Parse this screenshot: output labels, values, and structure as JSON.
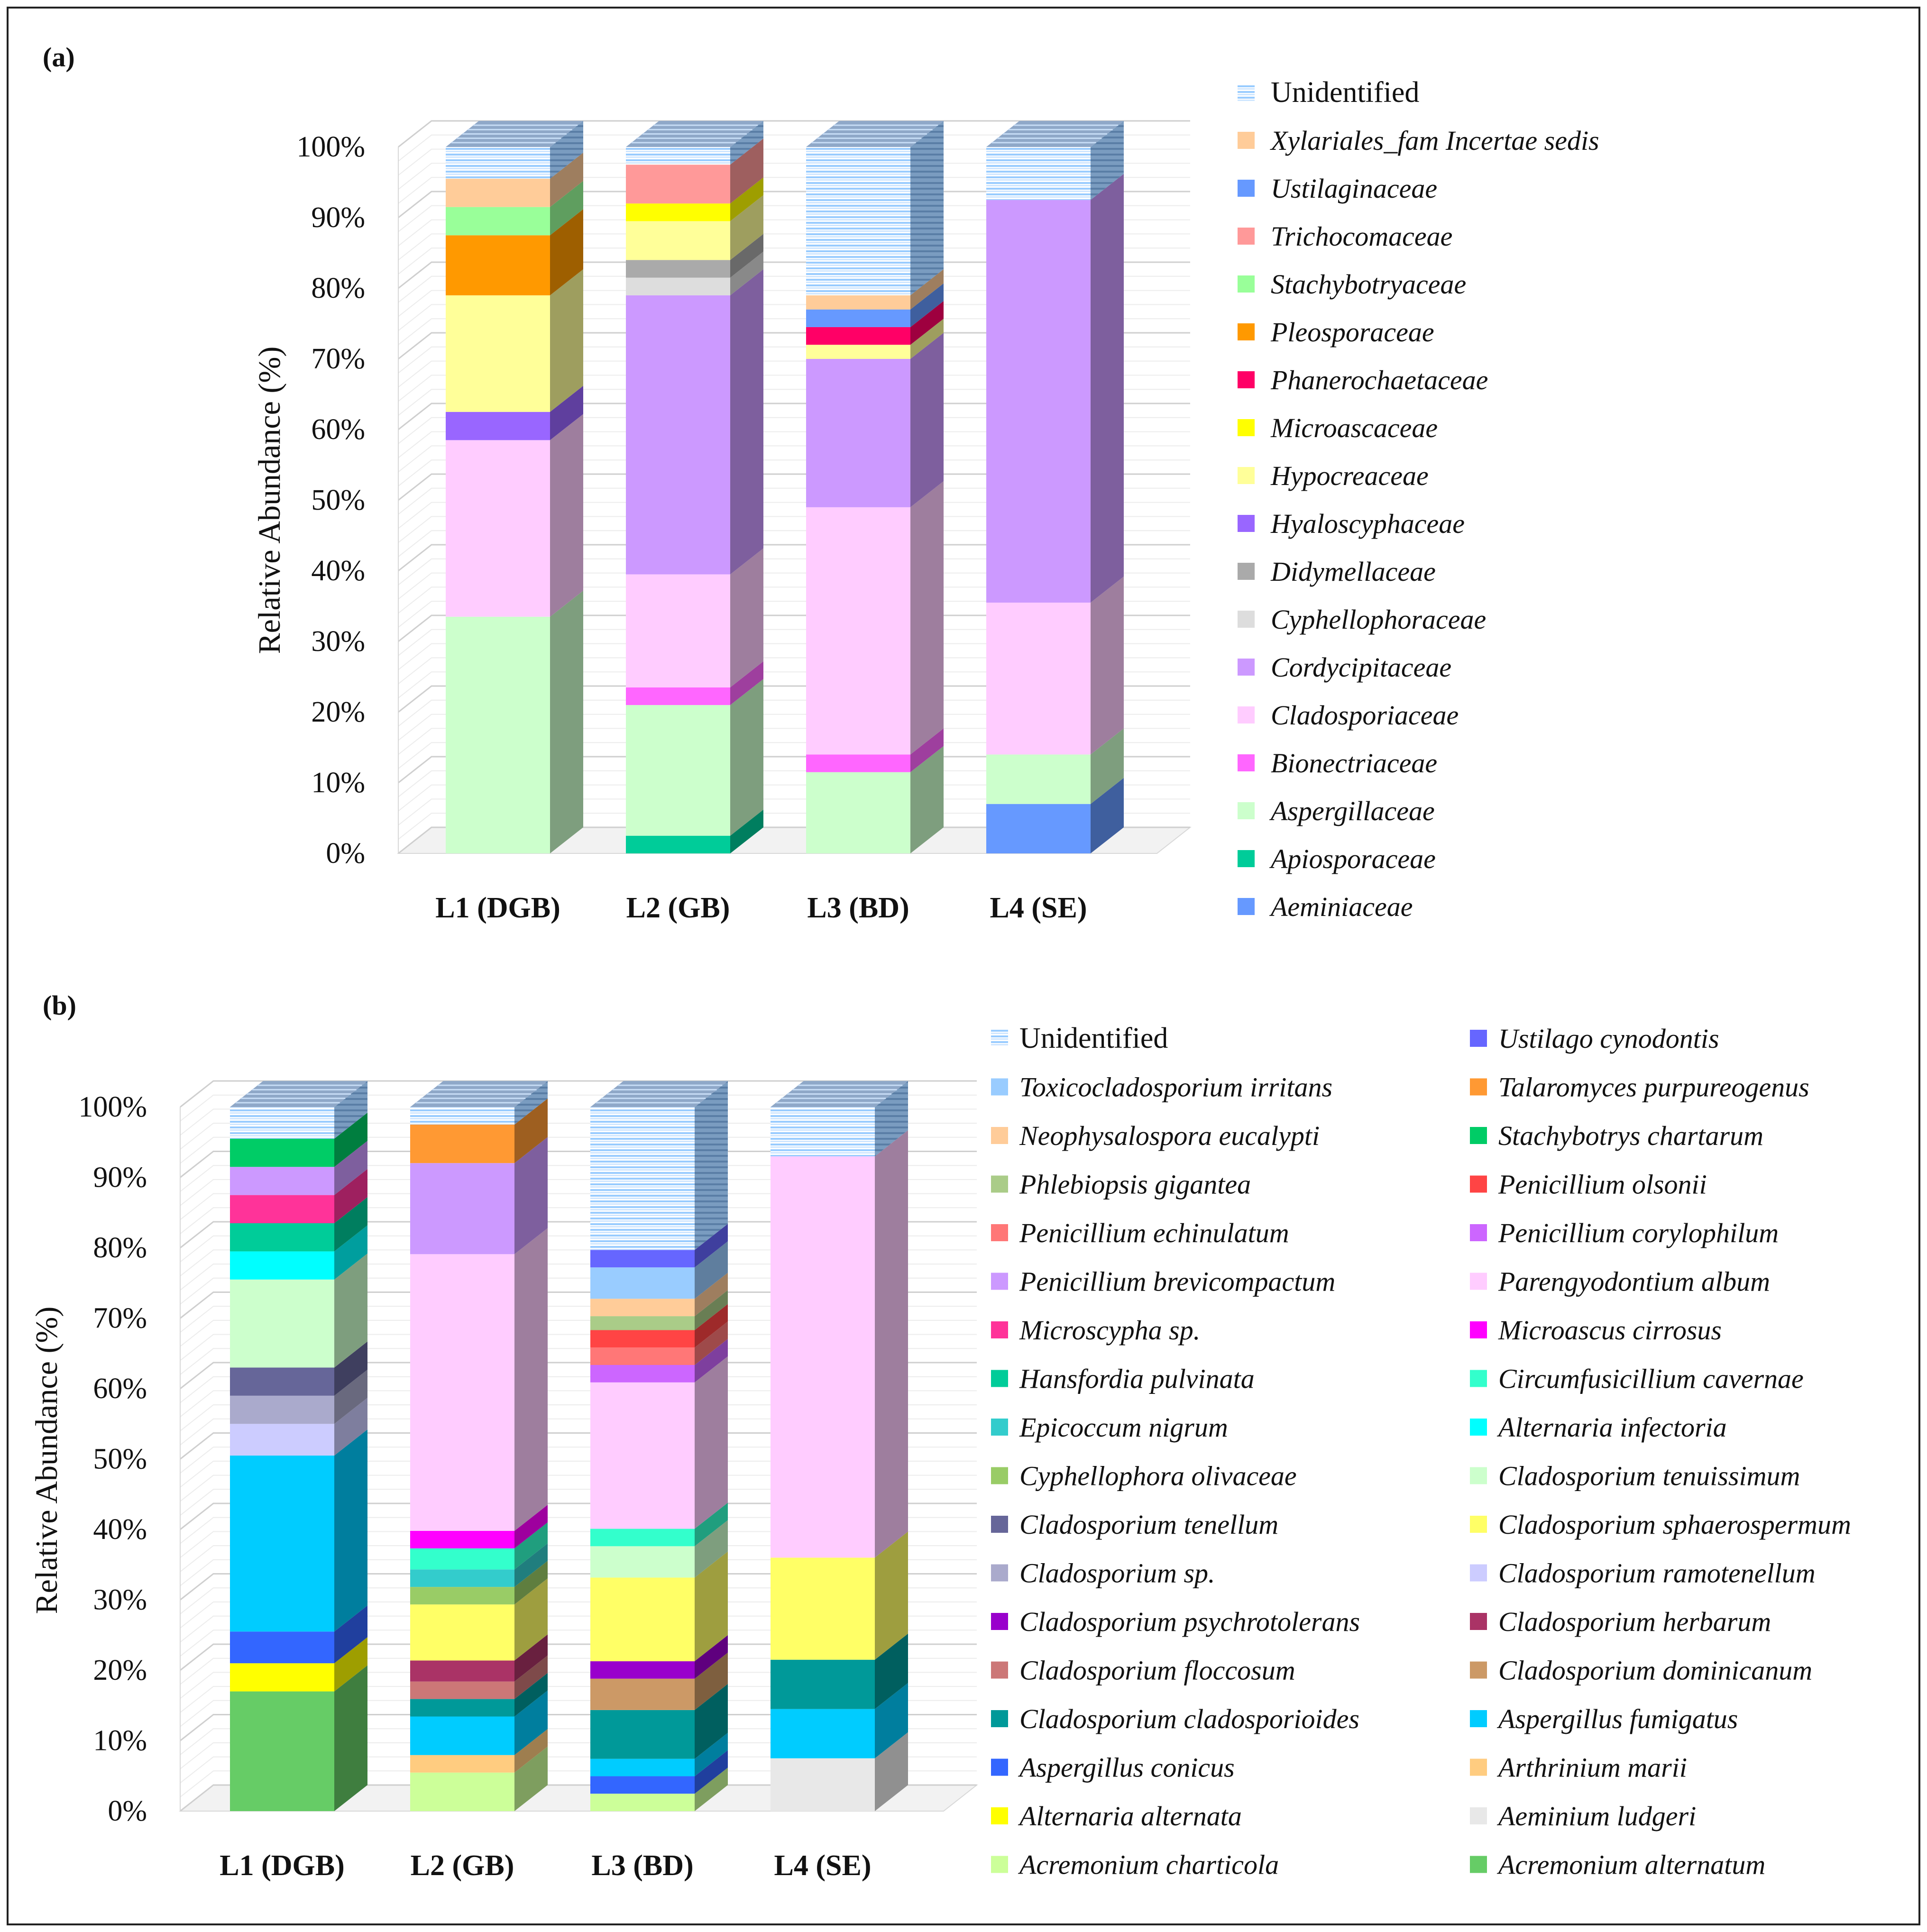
{
  "panels": [
    {
      "label": "(a)",
      "ylabel": "Relative Abundance (%)",
      "unidentified_label": "Unidentified",
      "chart_data": {
        "type": "bar",
        "stacked": true,
        "percent": true,
        "ylim": [
          0,
          100
        ],
        "yticks": [
          "0%",
          "10%",
          "20%",
          "30%",
          "40%",
          "50%",
          "60%",
          "70%",
          "80%",
          "90%",
          "100%"
        ],
        "categories": [
          "L1 (DGB)",
          "L2 (GB)",
          "L3 (BD)",
          "L4 (SE)"
        ],
        "legend_position": "right",
        "series": [
          {
            "name": "Aeminiaceae",
            "color": "#6699ff",
            "values": [
              0,
              0,
              0,
              7
            ]
          },
          {
            "name": "Apiosporaceae",
            "color": "#00cc99",
            "values": [
              0,
              2.5,
              0,
              0
            ]
          },
          {
            "name": "Aspergillaceae",
            "color": "#ccffcc",
            "values": [
              33.5,
              18.5,
              11.5,
              7
            ]
          },
          {
            "name": "Bionectriaceae",
            "color": "#ff66ff",
            "values": [
              0,
              2.5,
              2.5,
              0
            ]
          },
          {
            "name": "Cladosporiaceae",
            "color": "#ffccff",
            "values": [
              25,
              16,
              35,
              21.5
            ]
          },
          {
            "name": "Cordycipitaceae",
            "color": "#cc99ff",
            "values": [
              0,
              39.5,
              21,
              57
            ]
          },
          {
            "name": "Cyphellophoraceae",
            "color": "#dddddd",
            "values": [
              0,
              2.5,
              0,
              0
            ]
          },
          {
            "name": "Didymellaceae",
            "color": "#aaaaaa",
            "values": [
              0,
              2.5,
              0,
              0
            ]
          },
          {
            "name": "Hyaloscyphaceae",
            "color": "#9966ff",
            "values": [
              4,
              0,
              0,
              0
            ]
          },
          {
            "name": "Hypocreaceae",
            "color": "#ffff99",
            "values": [
              16.5,
              5.5,
              2,
              0
            ]
          },
          {
            "name": "Microascaceae",
            "color": "#ffff00",
            "values": [
              0,
              2.5,
              0,
              0
            ]
          },
          {
            "name": "Phanerochaetaceae",
            "color": "#ff0066",
            "values": [
              0,
              0,
              2.5,
              0
            ]
          },
          {
            "name": "Pleosporaceae",
            "color": "#ff9900",
            "values": [
              8.5,
              0,
              0,
              0
            ]
          },
          {
            "name": "Stachybotryaceae",
            "color": "#99ff99",
            "values": [
              4,
              0,
              0,
              0
            ]
          },
          {
            "name": "Trichocomaceae",
            "color": "#ff9999",
            "values": [
              0,
              5.5,
              0,
              0
            ]
          },
          {
            "name": "Ustilaginaceae",
            "color": "#6699ff",
            "values": [
              0,
              0,
              2.5,
              0
            ]
          },
          {
            "name": "Xylariales_fam Incertae sedis",
            "color": "#ffcc99",
            "values": [
              4,
              0,
              2,
              0
            ]
          },
          {
            "name": "Unidentified",
            "color": "#99ccff",
            "values": [
              4.5,
              2.5,
              21,
              7.5
            ]
          }
        ]
      }
    },
    {
      "label": "(b)",
      "ylabel": "Relative Abundance (%)",
      "unidentified_label": "Unidentified",
      "chart_data": {
        "type": "bar",
        "stacked": true,
        "percent": true,
        "ylim": [
          0,
          100
        ],
        "yticks": [
          "0%",
          "10%",
          "20%",
          "30%",
          "40%",
          "50%",
          "60%",
          "70%",
          "80%",
          "90%",
          "100%"
        ],
        "categories": [
          "L1 (DGB)",
          "L2 (GB)",
          "L3 (BD)",
          "L4 (SE)"
        ],
        "legend_position": "right",
        "series": [
          {
            "name": "Acremonium alternatum",
            "color": "#66cc66",
            "values": [
              17,
              0,
              0,
              0
            ]
          },
          {
            "name": "Acremonium charticola",
            "color": "#ccff99",
            "values": [
              0,
              5.5,
              2.5,
              0
            ]
          },
          {
            "name": "Aeminium ludgeri",
            "color": "#e8e8e8",
            "values": [
              0,
              0,
              0,
              7.5
            ]
          },
          {
            "name": "Alternaria alternata",
            "color": "#ffff00",
            "values": [
              4,
              0,
              0,
              0
            ]
          },
          {
            "name": "Arthrinium marii",
            "color": "#ffcc80",
            "values": [
              0,
              2.5,
              0,
              0
            ]
          },
          {
            "name": "Aspergillus conicus",
            "color": "#3366ff",
            "values": [
              4.5,
              0,
              2.5,
              0
            ]
          },
          {
            "name": "Aspergillus fumigatus",
            "color": "#00ccff",
            "values": [
              25,
              5.5,
              2.5,
              7
            ]
          },
          {
            "name": "Cladosporium cladosporioides",
            "color": "#009999",
            "values": [
              0,
              2.5,
              7,
              7
            ]
          },
          {
            "name": "Cladosporium dominicanum",
            "color": "#cc9966",
            "values": [
              0,
              0,
              4.5,
              0
            ]
          },
          {
            "name": "Cladosporium floccosum",
            "color": "#cc7777",
            "values": [
              0,
              2.5,
              0,
              0
            ]
          },
          {
            "name": "Cladosporium herbarum",
            "color": "#aa3366",
            "values": [
              0,
              3,
              0,
              0
            ]
          },
          {
            "name": "Cladosporium psychrotolerans",
            "color": "#9900cc",
            "values": [
              0,
              0,
              2.5,
              0
            ]
          },
          {
            "name": "Cladosporium ramotenellum",
            "color": "#ccccff",
            "values": [
              4.5,
              0,
              0,
              0
            ]
          },
          {
            "name": "Cladosporium sp.",
            "color": "#aaaacc",
            "values": [
              4,
              0,
              0,
              0
            ]
          },
          {
            "name": "Cladosporium sphaerospermum",
            "color": "#ffff66",
            "values": [
              0,
              8,
              12,
              14.5
            ]
          },
          {
            "name": "Cladosporium tenellum",
            "color": "#666699",
            "values": [
              4,
              0,
              0,
              0
            ]
          },
          {
            "name": "Cladosporium tenuissimum",
            "color": "#ccffcc",
            "values": [
              12.5,
              0,
              4.5,
              0
            ]
          },
          {
            "name": "Cyphellophora olivaceae",
            "color": "#99cc66",
            "values": [
              0,
              2.5,
              0,
              0
            ]
          },
          {
            "name": "Alternaria infectoria",
            "color": "#00ffff",
            "values": [
              4,
              0,
              0,
              0
            ]
          },
          {
            "name": "Epicoccum nigrum",
            "color": "#33cccc",
            "values": [
              0,
              2.5,
              0,
              0
            ]
          },
          {
            "name": "Circumfusicillium cavernae",
            "color": "#33ffcc",
            "values": [
              0,
              3,
              2.5,
              0
            ]
          },
          {
            "name": "Hansfordia pulvinata",
            "color": "#00cc99",
            "values": [
              4,
              0,
              0,
              0
            ]
          },
          {
            "name": "Microascus cirrosus",
            "color": "#ff00ff",
            "values": [
              0,
              2.5,
              0,
              0
            ]
          },
          {
            "name": "Microscypha sp.",
            "color": "#ff3399",
            "values": [
              4,
              0,
              0,
              0
            ]
          },
          {
            "name": "Parengyodontium album",
            "color": "#ffccff",
            "values": [
              0,
              39.5,
              21,
              57
            ]
          },
          {
            "name": "Penicillium brevicompactum",
            "color": "#cc99ff",
            "values": [
              4,
              13,
              0,
              0
            ]
          },
          {
            "name": "Penicillium corylophilum",
            "color": "#cc66ff",
            "values": [
              0,
              0,
              2.5,
              0
            ]
          },
          {
            "name": "Penicillium echinulatum",
            "color": "#ff7777",
            "values": [
              0,
              0,
              2.5,
              0
            ]
          },
          {
            "name": "Penicillium olsonii",
            "color": "#ff4444",
            "values": [
              0,
              0,
              2.5,
              0
            ]
          },
          {
            "name": "Phlebiopsis gigantea",
            "color": "#aacc88",
            "values": [
              0,
              0,
              2,
              0
            ]
          },
          {
            "name": "Stachybotrys chartarum",
            "color": "#00cc66",
            "values": [
              4,
              0,
              0,
              0
            ]
          },
          {
            "name": "Neophysalospora eucalypti",
            "color": "#ffcc99",
            "values": [
              0,
              0,
              2.5,
              0
            ]
          },
          {
            "name": "Talaromyces purpureogenus",
            "color": "#ff9933",
            "values": [
              0,
              5.5,
              0,
              0
            ]
          },
          {
            "name": "Toxicocladosporium irritans",
            "color": "#99ccff",
            "values": [
              0,
              0,
              4.5,
              0
            ]
          },
          {
            "name": "Ustilago cynodontis",
            "color": "#6666ff",
            "values": [
              0,
              0,
              2.5,
              0
            ]
          },
          {
            "name": "Unidentified",
            "color": "#99ccff",
            "values": [
              4.5,
              2.5,
              20.5,
              7
            ]
          }
        ],
        "legend_order": [
          "Toxicocladosporium irritans",
          "Neophysalospora eucalypti",
          "Phlebiopsis gigantea",
          "Penicillium echinulatum",
          "Penicillium brevicompactum",
          "Microscypha sp.",
          "Hansfordia pulvinata",
          "Epicoccum nigrum",
          "Cyphellophora olivaceae",
          "Cladosporium tenellum",
          "Cladosporium sp.",
          "Cladosporium psychrotolerans",
          "Cladosporium floccosum",
          "Cladosporium cladosporioides",
          "Aspergillus conicus",
          "Alternaria alternata",
          "Acremonium charticola",
          "Ustilago cynodontis",
          "Talaromyces purpureogenus",
          "Stachybotrys chartarum",
          "Penicillium olsonii",
          "Penicillium corylophilum",
          "Parengyodontium album",
          "Microascus cirrosus",
          "Circumfusicillium cavernae",
          "Alternaria infectoria",
          "Cladosporium tenuissimum",
          "Cladosporium sphaerospermum",
          "Cladosporium ramotenellum",
          "Cladosporium herbarum",
          "Cladosporium dominicanum",
          "Aspergillus fumigatus",
          "Arthrinium marii",
          "Aeminium ludgeri",
          "Acremonium alternatum"
        ]
      }
    }
  ]
}
